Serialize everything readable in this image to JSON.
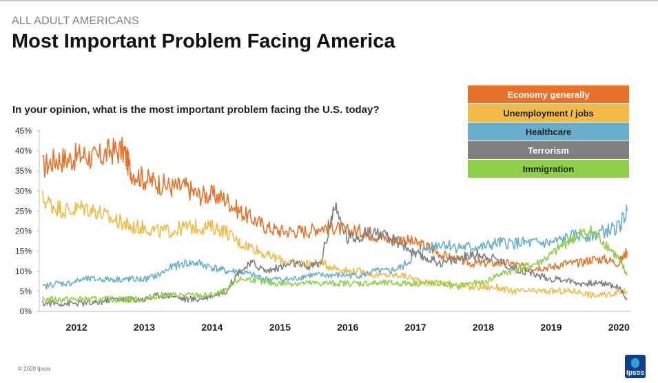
{
  "header": {
    "supertitle": "ALL ADULT AMERICANS",
    "title": "Most Important Problem Facing America",
    "question": "In your opinion, what is the most important problem facing the U.S. today?"
  },
  "footer": {
    "copyright": "© 2020 Ipsos",
    "logo_text": "Ipsos"
  },
  "chart_data": {
    "type": "line",
    "title": "Most Important Problem Facing America",
    "subtitle": "In your opinion, what is the most important problem facing the U.S. today?",
    "xlabel": "",
    "ylabel": "",
    "xlim": [
      2011.45,
      2020.18
    ],
    "ylim": [
      0,
      45
    ],
    "y_ticks": [
      "0%",
      "5%",
      "10%",
      "15%",
      "20%",
      "25%",
      "30%",
      "35%",
      "40%",
      "45%"
    ],
    "x_ticks": [
      "2012",
      "2013",
      "2014",
      "2015",
      "2016",
      "2017",
      "2018",
      "2019",
      "2020"
    ],
    "grid": false,
    "legend_position": "top-right",
    "series": [
      {
        "name": "Economy generally",
        "color": "#e8722a",
        "x": [
          2011.5,
          2011.7,
          2011.9,
          2012.1,
          2012.3,
          2012.5,
          2012.7,
          2012.8,
          2013.0,
          2013.2,
          2013.4,
          2013.6,
          2013.8,
          2014.0,
          2014.2,
          2014.4,
          2014.6,
          2014.8,
          2015.0,
          2015.2,
          2015.4,
          2015.6,
          2015.8,
          2016.0,
          2016.2,
          2016.4,
          2016.6,
          2016.8,
          2017.0,
          2017.2,
          2017.4,
          2017.6,
          2017.8,
          2018.0,
          2018.2,
          2018.4,
          2018.6,
          2018.8,
          2019.0,
          2019.2,
          2019.4,
          2019.6,
          2019.8,
          2020.0,
          2020.12
        ],
        "y": [
          36,
          38,
          38,
          39,
          38,
          40,
          40,
          35,
          33,
          32,
          31,
          31,
          29,
          29,
          28,
          25,
          23,
          21,
          20,
          20,
          20,
          21,
          21,
          20,
          20,
          19,
          18,
          18,
          17,
          16,
          14,
          13,
          12,
          12,
          12,
          12,
          11,
          11,
          11,
          12,
          12,
          13,
          13,
          12,
          15
        ]
      },
      {
        "name": "Unemployment / jobs",
        "color": "#f2bb45",
        "x": [
          2011.5,
          2011.7,
          2011.9,
          2012.1,
          2012.3,
          2012.5,
          2012.7,
          2012.8,
          2013.0,
          2013.2,
          2013.4,
          2013.6,
          2013.8,
          2014.0,
          2014.2,
          2014.4,
          2014.6,
          2014.8,
          2015.0,
          2015.2,
          2015.4,
          2015.6,
          2015.8,
          2016.0,
          2016.2,
          2016.4,
          2016.6,
          2016.8,
          2017.0,
          2017.2,
          2017.4,
          2017.6,
          2017.8,
          2018.0,
          2018.2,
          2018.4,
          2018.6,
          2018.8,
          2019.0,
          2019.2,
          2019.4,
          2019.6,
          2019.8,
          2020.0,
          2020.12
        ],
        "y": [
          28,
          26,
          25,
          26,
          25,
          23,
          22,
          21,
          21,
          20,
          20,
          21,
          21,
          21,
          20,
          17,
          16,
          14,
          13,
          12,
          12,
          12,
          11,
          10,
          10,
          9,
          9,
          9,
          8,
          7,
          7,
          7,
          6,
          6,
          6,
          5,
          5,
          5,
          5,
          5,
          5,
          4,
          4,
          5,
          5
        ]
      },
      {
        "name": "Healthcare",
        "color": "#6aaecd",
        "x": [
          2011.5,
          2011.7,
          2011.9,
          2012.1,
          2012.3,
          2012.5,
          2012.7,
          2012.8,
          2013.0,
          2013.2,
          2013.4,
          2013.6,
          2013.8,
          2014.0,
          2014.2,
          2014.4,
          2014.6,
          2014.8,
          2015.0,
          2015.2,
          2015.4,
          2015.6,
          2015.8,
          2016.0,
          2016.2,
          2016.4,
          2016.6,
          2016.8,
          2017.0,
          2017.2,
          2017.4,
          2017.6,
          2017.8,
          2018.0,
          2018.2,
          2018.4,
          2018.6,
          2018.8,
          2019.0,
          2019.2,
          2019.4,
          2019.6,
          2019.8,
          2020.0,
          2020.12
        ],
        "y": [
          6,
          7,
          7,
          8,
          8,
          8,
          8,
          8,
          8,
          9,
          11,
          12,
          12,
          11,
          10,
          10,
          9,
          8,
          8,
          8,
          9,
          9,
          9,
          9,
          9,
          10,
          10,
          11,
          14,
          16,
          17,
          16,
          16,
          16,
          17,
          17,
          17,
          17,
          17,
          18,
          19,
          19,
          20,
          21,
          25
        ]
      },
      {
        "name": "Terrorism",
        "color": "#7f7f7f",
        "x": [
          2011.5,
          2011.7,
          2011.9,
          2012.1,
          2012.3,
          2012.5,
          2012.7,
          2012.8,
          2013.0,
          2013.2,
          2013.4,
          2013.6,
          2013.8,
          2014.0,
          2014.2,
          2014.4,
          2014.6,
          2014.8,
          2015.0,
          2015.2,
          2015.4,
          2015.6,
          2015.8,
          2016.0,
          2016.2,
          2016.4,
          2016.6,
          2016.8,
          2017.0,
          2017.2,
          2017.4,
          2017.6,
          2017.8,
          2018.0,
          2018.2,
          2018.4,
          2018.6,
          2018.8,
          2019.0,
          2019.2,
          2019.4,
          2019.6,
          2019.8,
          2020.0,
          2020.12
        ],
        "y": [
          2,
          2,
          2,
          2,
          2,
          3,
          3,
          3,
          3,
          4,
          4,
          3,
          3,
          4,
          5,
          10,
          12,
          10,
          11,
          12,
          11,
          12,
          26,
          18,
          19,
          20,
          18,
          17,
          14,
          13,
          12,
          13,
          14,
          14,
          13,
          11,
          10,
          9,
          8,
          8,
          7,
          7,
          7,
          6,
          3
        ]
      },
      {
        "name": "Immigration",
        "color": "#8ed04a",
        "x": [
          2011.5,
          2011.7,
          2011.9,
          2012.1,
          2012.3,
          2012.5,
          2012.7,
          2012.8,
          2013.0,
          2013.2,
          2013.4,
          2013.6,
          2013.8,
          2014.0,
          2014.2,
          2014.4,
          2014.6,
          2014.8,
          2015.0,
          2015.2,
          2015.4,
          2015.6,
          2015.8,
          2016.0,
          2016.2,
          2016.4,
          2016.6,
          2016.8,
          2017.0,
          2017.2,
          2017.4,
          2017.6,
          2017.8,
          2018.0,
          2018.2,
          2018.4,
          2018.6,
          2018.8,
          2019.0,
          2019.2,
          2019.4,
          2019.6,
          2019.8,
          2020.0,
          2020.12
        ],
        "y": [
          3,
          3,
          3,
          3,
          3,
          3,
          3,
          3,
          3,
          4,
          4,
          4,
          4,
          4,
          5,
          8,
          8,
          7,
          7,
          7,
          7,
          7,
          7,
          7,
          7,
          7,
          7,
          7,
          7,
          7,
          7,
          6,
          7,
          7,
          9,
          10,
          11,
          12,
          14,
          17,
          19,
          20,
          17,
          13,
          9
        ]
      }
    ]
  }
}
